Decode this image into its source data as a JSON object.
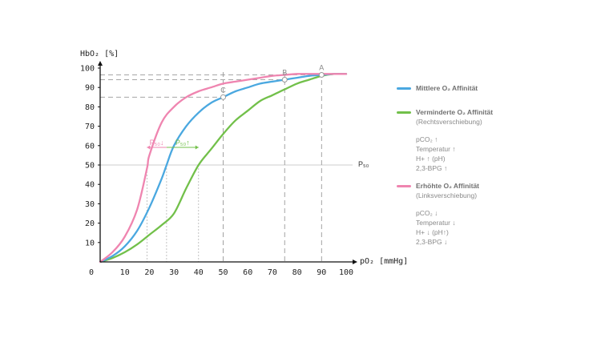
{
  "chart_data": {
    "type": "line",
    "ylabel": "HbO₂ [%]",
    "xlabel": "pO₂ [mmHg]",
    "xlim": [
      0,
      100
    ],
    "ylim": [
      0,
      100
    ],
    "xticks": [
      "0",
      "10",
      "20",
      "30",
      "40",
      "50",
      "60",
      "70",
      "80",
      "90",
      "100"
    ],
    "yticks": [
      "10",
      "20",
      "30",
      "40",
      "50",
      "60",
      "70",
      "80",
      "90",
      "100"
    ],
    "grid": false,
    "legend_position": "right",
    "p50_label": "P₅₀",
    "series": [
      {
        "name": "Mittlere O₂ Affinität",
        "color": "#4aa8e0",
        "x": [
          0,
          5,
          10,
          15,
          20,
          25,
          27,
          30,
          35,
          40,
          45,
          50,
          55,
          60,
          65,
          70,
          75,
          80,
          85,
          90,
          95,
          100
        ],
        "y": [
          0,
          3,
          8,
          16,
          28,
          43,
          50,
          60,
          70,
          77,
          82,
          85,
          88,
          90,
          92,
          93,
          94,
          95,
          96,
          96.5,
          97,
          97
        ]
      },
      {
        "name": "Verminderte O₂ Affinität",
        "sub": "(Rechtsverschiebung)",
        "color": "#72c04a",
        "x": [
          0,
          5,
          10,
          15,
          20,
          25,
          30,
          35,
          40,
          45,
          50,
          55,
          60,
          65,
          70,
          75,
          80,
          85,
          90,
          95,
          100
        ],
        "y": [
          0,
          2,
          5,
          9,
          14,
          19,
          25,
          38,
          50,
          58,
          66,
          73,
          78,
          83,
          86,
          89,
          92,
          94,
          96,
          97,
          97
        ]
      },
      {
        "name": "Erhöhte O₂ Affinität",
        "sub": "(Linksverschiebung)",
        "color": "#ef85b0",
        "x": [
          0,
          5,
          10,
          15,
          19,
          20,
          25,
          30,
          35,
          40,
          45,
          50,
          55,
          60,
          65,
          70,
          75,
          80,
          85,
          90,
          95,
          100
        ],
        "y": [
          0,
          5,
          13,
          27,
          48,
          55,
          72,
          80,
          85,
          88,
          90,
          92,
          93,
          94,
          95,
          96,
          96.5,
          97,
          97,
          97,
          97,
          97
        ]
      }
    ],
    "p50_markers": [
      {
        "label": "P₅₀↓",
        "from": 27,
        "to": 19,
        "color": "#ef85b0"
      },
      {
        "label": "P₅₀↑",
        "from": 27,
        "to": 40,
        "color": "#72c04a"
      }
    ],
    "points": [
      {
        "label": "A",
        "x": 90,
        "y": 96.5,
        "series": 0
      },
      {
        "label": "B",
        "x": 75,
        "y": 94,
        "series": 0
      },
      {
        "label": "C",
        "x": 50,
        "y": 85,
        "series": 0
      }
    ]
  },
  "legend": {
    "right_factors": [
      "pCO₂ ↑",
      "Temperatur ↑",
      "H+ ↑ (pH)",
      "2,3-BPG ↑"
    ],
    "left_factors": [
      "pCO₂ ↓",
      "Temperatur ↓",
      "H+ ↓ (pH↑)",
      "2,3-BPG ↓"
    ]
  }
}
